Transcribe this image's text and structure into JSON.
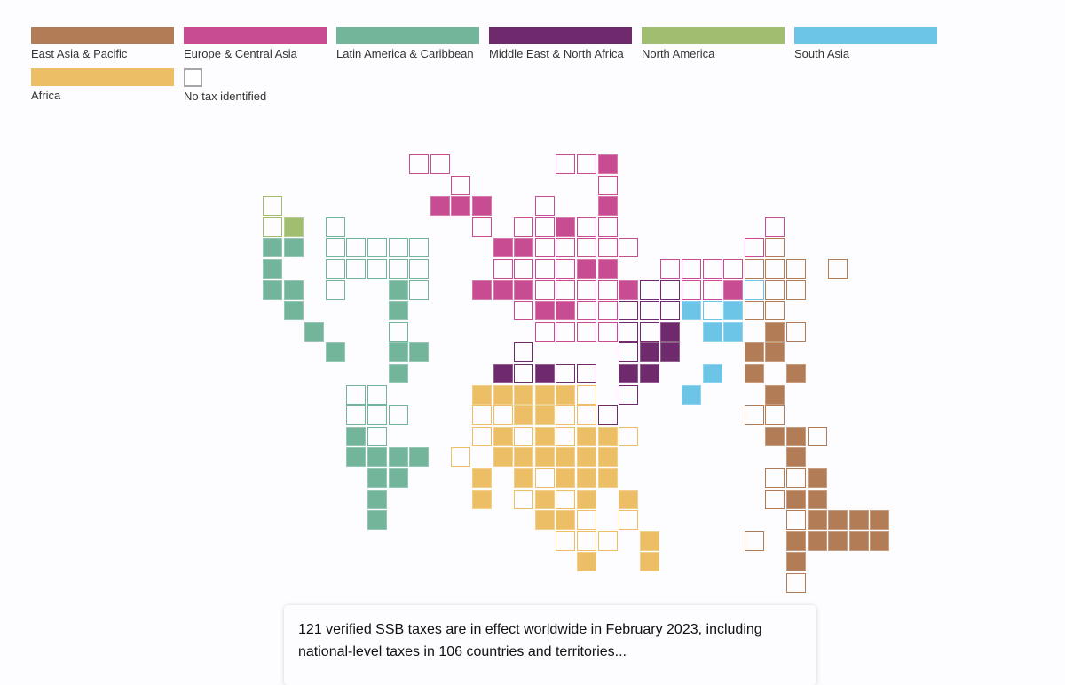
{
  "legend": {
    "items": [
      {
        "key": "EAP",
        "label": "East Asia & Pacific",
        "color": "#b27c56"
      },
      {
        "key": "ECA",
        "label": "Europe & Central Asia",
        "color": "#c84c91"
      },
      {
        "key": "LAC",
        "label": "Latin America & Caribbean",
        "color": "#72b59b"
      },
      {
        "key": "MENA",
        "label": "Middle East & North Africa",
        "color": "#6e2a6c"
      },
      {
        "key": "NA",
        "label": "North America",
        "color": "#a1be70"
      },
      {
        "key": "SA",
        "label": "South Asia",
        "color": "#6cc4e6"
      },
      {
        "key": "AFR",
        "label": "Africa",
        "color": "#ecbf67"
      },
      {
        "key": "NONE",
        "label": "No tax identified",
        "color": "#a6a6a6"
      }
    ]
  },
  "map": {
    "type": "tile-grid-map",
    "encoding": "row,col,region,status (F = tax in effect / filled, o = no tax identified / outline)",
    "cells": [
      "0,7,ECA,o",
      "0,8,ECA,o",
      "0,14,ECA,o",
      "0,15,ECA,o",
      "0,16,ECA,F",
      "1,9,ECA,o",
      "1,16,ECA,o",
      "2,0,NA,o",
      "2,8,ECA,F",
      "2,9,ECA,F",
      "2,10,ECA,F",
      "2,13,ECA,o",
      "2,16,ECA,F",
      "3,0,NA,o",
      "3,1,NA,F",
      "3,3,LAC,o",
      "3,10,ECA,o",
      "3,12,ECA,o",
      "3,13,ECA,o",
      "3,14,ECA,F",
      "3,15,ECA,o",
      "3,16,ECA,o",
      "3,24,ECA,o",
      "4,0,LAC,F",
      "4,1,LAC,F",
      "4,3,LAC,o",
      "4,4,LAC,o",
      "4,5,LAC,o",
      "4,6,LAC,o",
      "4,7,LAC,o",
      "4,11,ECA,F",
      "4,12,ECA,F",
      "4,13,ECA,o",
      "4,14,ECA,o",
      "4,15,ECA,o",
      "4,16,ECA,o",
      "4,17,ECA,o",
      "4,23,ECA,o",
      "4,24,EAP,o",
      "5,0,LAC,F",
      "5,3,LAC,o",
      "5,4,LAC,o",
      "5,5,LAC,o",
      "5,6,LAC,o",
      "5,7,LAC,o",
      "5,11,ECA,o",
      "5,12,ECA,o",
      "5,13,ECA,o",
      "5,14,ECA,o",
      "5,15,ECA,F",
      "5,16,ECA,F",
      "5,19,ECA,o",
      "5,20,ECA,o",
      "5,21,ECA,o",
      "5,22,ECA,o",
      "5,23,EAP,o",
      "5,24,EAP,o",
      "5,25,EAP,o",
      "5,27,EAP,o",
      "6,0,LAC,F",
      "6,1,LAC,F",
      "6,3,LAC,o",
      "6,6,LAC,F",
      "6,7,LAC,o",
      "6,10,ECA,F",
      "6,11,ECA,F",
      "6,12,ECA,F",
      "6,13,ECA,o",
      "6,14,ECA,o",
      "6,15,ECA,o",
      "6,16,ECA,o",
      "6,17,ECA,F",
      "6,18,MENA,o",
      "6,19,MENA,o",
      "6,20,ECA,o",
      "6,21,ECA,o",
      "6,22,ECA,F",
      "6,23,SA,o",
      "6,24,EAP,o",
      "6,25,EAP,o",
      "7,1,LAC,F",
      "7,6,LAC,F",
      "7,12,ECA,o",
      "7,13,ECA,F",
      "7,14,ECA,F",
      "7,15,ECA,o",
      "7,16,ECA,o",
      "7,17,MENA,o",
      "7,18,MENA,o",
      "7,19,MENA,o",
      "7,20,SA,F",
      "7,21,SA,o",
      "7,22,SA,F",
      "7,23,EAP,o",
      "7,24,EAP,o",
      "8,2,LAC,F",
      "8,6,LAC,o",
      "8,13,ECA,o",
      "8,14,ECA,o",
      "8,15,ECA,o",
      "8,16,ECA,o",
      "8,17,MENA,o",
      "8,18,MENA,o",
      "8,19,MENA,F",
      "8,21,SA,F",
      "8,22,SA,F",
      "8,24,EAP,F",
      "8,25,EAP,o",
      "9,3,LAC,F",
      "9,6,LAC,F",
      "9,7,LAC,F",
      "9,12,MENA,o",
      "9,17,MENA,o",
      "9,18,MENA,F",
      "9,19,MENA,F",
      "9,23,EAP,F",
      "9,24,EAP,F",
      "10,6,LAC,F",
      "10,11,MENA,F",
      "10,12,MENA,o",
      "10,13,MENA,F",
      "10,14,MENA,o",
      "10,15,MENA,o",
      "10,17,MENA,F",
      "10,18,MENA,F",
      "10,21,SA,F",
      "10,23,EAP,F",
      "10,25,EAP,F",
      "11,4,LAC,o",
      "11,5,LAC,o",
      "11,10,AFR,F",
      "11,11,AFR,F",
      "11,12,AFR,F",
      "11,13,AFR,F",
      "11,14,AFR,F",
      "11,15,AFR,o",
      "11,17,MENA,o",
      "11,20,SA,F",
      "11,24,EAP,F",
      "12,4,LAC,o",
      "12,5,LAC,o",
      "12,6,LAC,o",
      "12,10,AFR,o",
      "12,11,AFR,o",
      "12,12,AFR,F",
      "12,13,AFR,F",
      "12,14,AFR,o",
      "12,15,AFR,o",
      "12,16,MENA,o",
      "12,23,EAP,o",
      "12,24,EAP,o",
      "13,4,LAC,F",
      "13,5,LAC,o",
      "13,10,AFR,o",
      "13,11,AFR,F",
      "13,12,AFR,o",
      "13,13,AFR,F",
      "13,14,AFR,o",
      "13,15,AFR,F",
      "13,16,AFR,F",
      "13,17,AFR,o",
      "13,24,EAP,F",
      "13,25,EAP,F",
      "13,26,EAP,o",
      "14,4,LAC,F",
      "14,5,LAC,F",
      "14,6,LAC,F",
      "14,7,LAC,F",
      "14,9,AFR,o",
      "14,11,AFR,F",
      "14,12,AFR,F",
      "14,13,AFR,F",
      "14,14,AFR,F",
      "14,15,AFR,F",
      "14,16,AFR,F",
      "14,25,EAP,F",
      "15,5,LAC,F",
      "15,6,LAC,F",
      "15,10,AFR,F",
      "15,12,AFR,F",
      "15,13,AFR,o",
      "15,14,AFR,F",
      "15,15,AFR,F",
      "15,16,AFR,F",
      "15,24,EAP,o",
      "15,25,EAP,o",
      "15,26,EAP,F",
      "16,5,LAC,F",
      "16,10,AFR,F",
      "16,12,AFR,o",
      "16,13,AFR,F",
      "16,14,AFR,o",
      "16,15,AFR,F",
      "16,17,AFR,F",
      "16,24,EAP,o",
      "16,25,EAP,F",
      "16,26,EAP,F",
      "17,5,LAC,F",
      "17,13,AFR,F",
      "17,14,AFR,F",
      "17,15,AFR,o",
      "17,17,AFR,o",
      "17,25,EAP,o",
      "17,26,EAP,F",
      "17,27,EAP,F",
      "17,28,EAP,F",
      "17,29,EAP,F",
      "18,14,AFR,o",
      "18,15,AFR,o",
      "18,16,AFR,o",
      "18,18,AFR,F",
      "18,23,EAP,o",
      "18,25,EAP,F",
      "18,26,EAP,F",
      "18,27,EAP,F",
      "18,28,EAP,F",
      "18,29,EAP,F",
      "19,15,AFR,F",
      "19,18,AFR,F",
      "19,25,EAP,F",
      "20,25,EAP,o"
    ]
  },
  "card": {
    "text": "121 verified SSB taxes are in effect worldwide in February 2023, including national-level taxes in 106 countries and territories..."
  }
}
